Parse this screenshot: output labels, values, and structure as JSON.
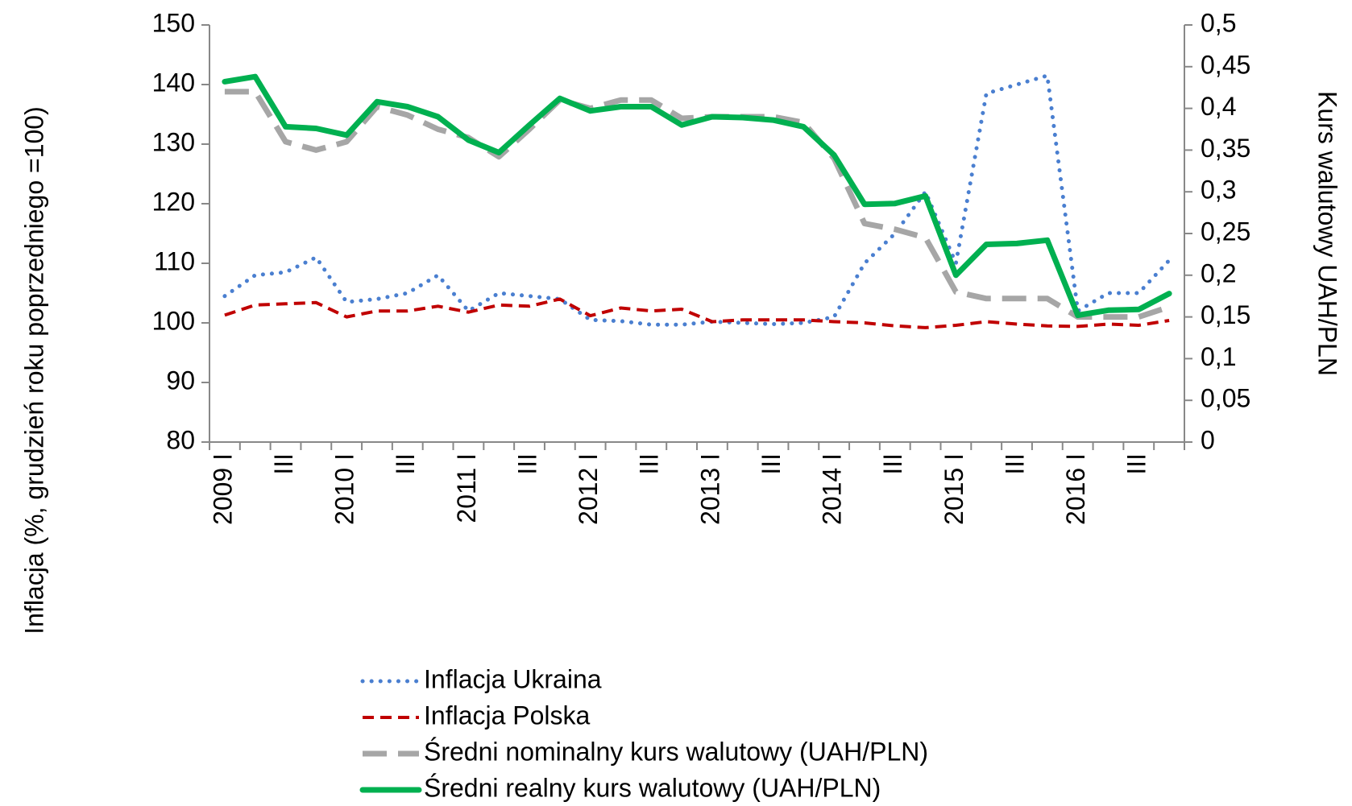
{
  "chart_data": {
    "type": "line",
    "y_label": "Inflacja (%, grudzień roku poprzedniego =100)",
    "y2_label": "Kurs walutowy UAH/PLN",
    "categories": [
      "2009 I",
      null,
      "III",
      null,
      "2010 I",
      null,
      "III",
      null,
      "2011 I",
      null,
      "III",
      null,
      "2012 I",
      null,
      "III",
      null,
      "2013 I",
      null,
      "III",
      null,
      "2014 I",
      null,
      "III",
      null,
      "2015 I",
      null,
      "III",
      null,
      "2016 I",
      null,
      "III",
      null
    ],
    "ylim": [
      80,
      150
    ],
    "yticks": [
      80,
      90,
      100,
      110,
      120,
      130,
      140,
      150
    ],
    "y2lim": [
      0,
      0.5
    ],
    "y2ticks": [
      0,
      {
        "value": 0.05,
        "label": "0,05"
      },
      {
        "value": 0.1,
        "label": "0,1"
      },
      {
        "value": 0.15,
        "label": "0,15"
      },
      {
        "value": 0.2,
        "label": "0,2"
      },
      {
        "value": 0.25,
        "label": "0,25"
      },
      {
        "value": 0.3,
        "label": "0,3"
      },
      {
        "value": 0.35,
        "label": "0,35"
      },
      {
        "value": 0.4,
        "label": "0,4"
      },
      {
        "value": 0.45,
        "label": "0,45"
      },
      {
        "value": 0.5,
        "label": "0,5"
      }
    ],
    "grid": false,
    "legend": "bottom",
    "series": [
      {
        "name": "Inflacja Ukraina",
        "color": "#4a7fd0",
        "style": "dotted",
        "width": 5,
        "values": [
          104.5,
          108,
          108.5,
          111,
          103.5,
          104,
          105,
          108,
          102,
          105,
          104.5,
          104,
          100.5,
          100.3,
          99.7,
          99.7,
          100.2,
          100,
          99.8,
          100,
          101,
          110,
          115,
          122,
          110,
          138.5,
          140,
          141.5,
          102,
          105,
          105,
          110.5
        ]
      },
      {
        "name": "Inflacja Polska",
        "color": "#c00000",
        "style": "dashed",
        "width": 4,
        "values": [
          101.3,
          103,
          103.2,
          103.4,
          101,
          102,
          102,
          102.8,
          101.8,
          103,
          102.8,
          104,
          101.2,
          102.5,
          102,
          102.3,
          100.2,
          100.5,
          100.5,
          100.5,
          100.2,
          100,
          99.5,
          99.2,
          99.6,
          100.2,
          99.8,
          99.5,
          99.4,
          99.8,
          99.6,
          100.4
        ]
      },
      {
        "name": "Średni nominalny kurs walutowy (UAH/PLN)",
        "color": "#a6a6a6",
        "style": "longdash",
        "width": 7,
        "axis": "y2",
        "values": [
          0.42,
          0.42,
          0.36,
          0.35,
          0.36,
          0.402,
          0.392,
          0.375,
          0.365,
          0.342,
          0.375,
          0.41,
          0.4,
          0.41,
          0.41,
          0.388,
          0.39,
          0.39,
          0.39,
          0.383,
          0.34,
          0.262,
          0.255,
          0.245,
          0.18,
          0.172,
          0.172,
          0.172,
          0.15,
          0.15,
          0.15,
          0.162
        ]
      },
      {
        "name": "Średni realny kurs walutowy (UAH/PLN)",
        "color": "#00b050",
        "style": "solid",
        "width": 7,
        "axis": "y2",
        "values": [
          0.432,
          0.438,
          0.378,
          0.376,
          0.368,
          0.408,
          0.402,
          0.39,
          0.362,
          0.347,
          0.38,
          0.412,
          0.397,
          0.402,
          0.402,
          0.38,
          0.39,
          0.389,
          0.386,
          0.378,
          0.344,
          0.285,
          0.286,
          0.295,
          0.2,
          0.237,
          0.238,
          0.242,
          0.152,
          0.158,
          0.159,
          0.178
        ]
      }
    ]
  }
}
